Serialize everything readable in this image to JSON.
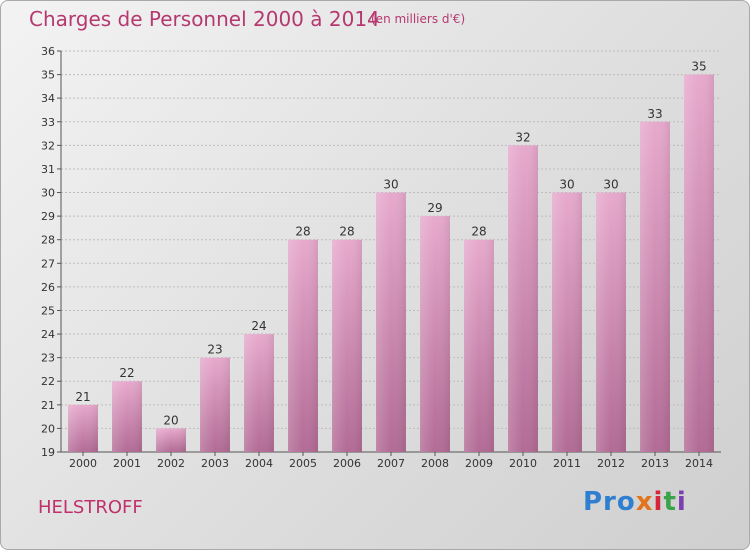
{
  "header": {
    "title": "Charges de Personnel 2000 à 2014",
    "subtitle": "(en milliers d'€)"
  },
  "footer": {
    "place": "HELSTROFF",
    "logo": [
      "Pro",
      "x",
      "i",
      "t",
      "i"
    ]
  },
  "colors": {
    "title": "#b5396f",
    "bar_top": "#e7a9cd",
    "bar_bottom": "#b26b95"
  },
  "chart_data": {
    "type": "bar",
    "title": "Charges de Personnel 2000 à 2014",
    "subtitle": "(en milliers d'€)",
    "categories": [
      "2000",
      "2001",
      "2002",
      "2003",
      "2004",
      "2005",
      "2006",
      "2007",
      "2008",
      "2009",
      "2010",
      "2011",
      "2012",
      "2013",
      "2014"
    ],
    "values": [
      21,
      22,
      20,
      23,
      24,
      28,
      28,
      30,
      29,
      28,
      32,
      30,
      30,
      33,
      35
    ],
    "ylim": [
      19,
      36
    ],
    "yticks": [
      19,
      20,
      21,
      22,
      23,
      24,
      25,
      26,
      27,
      28,
      29,
      30,
      31,
      32,
      33,
      34,
      35,
      36
    ],
    "grid": true
  }
}
